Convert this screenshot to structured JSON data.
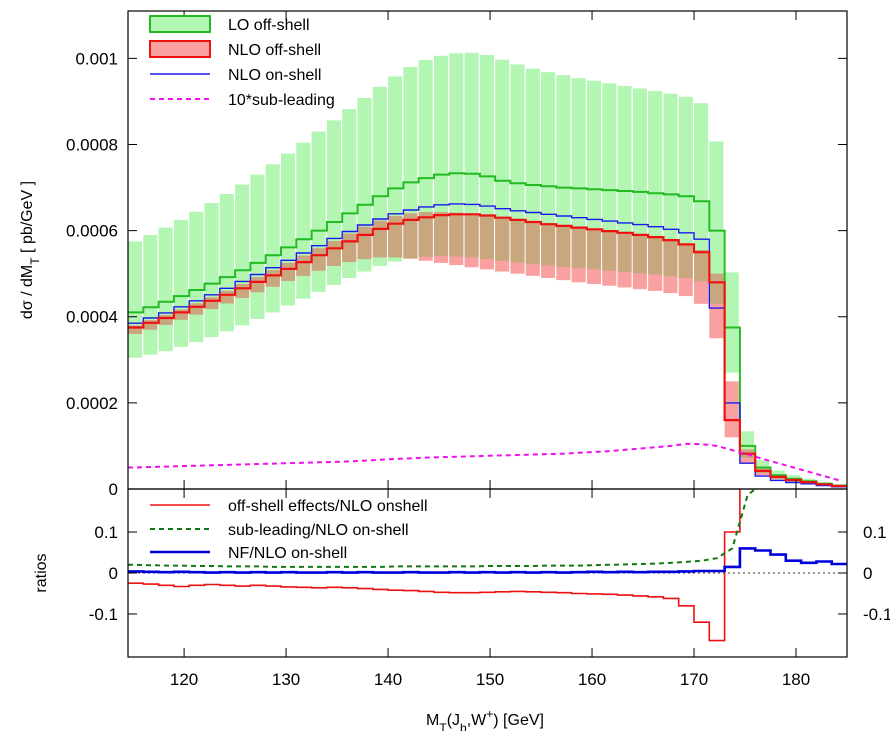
{
  "chart_data": [
    {
      "type": "area",
      "ylabel": "dσ / dM",
      "ylabel_sub": "T",
      "ylabel_units": " [ pb/GeV ]",
      "xlim": [
        114.5,
        185
      ],
      "ylim": [
        0,
        0.00111
      ],
      "yticks": [
        0,
        0.0002,
        0.0004,
        0.0006,
        0.0008,
        0.001
      ],
      "ytick_labels": [
        "0",
        "0.0002",
        "0.0004",
        "0.0006",
        "0.0008",
        "0.001"
      ],
      "legend_position": "top-left",
      "bin_edges": [
        114.5,
        116,
        117.5,
        119,
        120.5,
        122,
        123.5,
        125,
        126.5,
        128,
        129.5,
        131,
        132.5,
        134,
        135.5,
        137,
        138.5,
        140,
        141.5,
        143,
        144.5,
        146,
        147.5,
        149,
        150.5,
        152,
        153.5,
        155,
        156.5,
        158,
        159.5,
        161,
        162.5,
        164,
        165.5,
        167,
        168.5,
        170,
        171.5,
        173,
        174.5,
        176,
        177.5,
        179,
        180.5,
        182,
        183.5,
        185
      ],
      "series": [
        {
          "name": "LO off-shell",
          "style": "band",
          "color": "#22bb22",
          "fill": "#b3f5b3",
          "central": [
            0.00041,
            0.000422,
            0.000435,
            0.000448,
            0.000462,
            0.000477,
            0.000492,
            0.000508,
            0.000525,
            0.000543,
            0.000561,
            0.00058,
            0.0006,
            0.00062,
            0.00064,
            0.00066,
            0.00068,
            0.000698,
            0.000712,
            0.000722,
            0.00073,
            0.000733,
            0.000732,
            0.000726,
            0.000716,
            0.00071,
            0.000706,
            0.000703,
            0.0007,
            0.000698,
            0.000696,
            0.000694,
            0.000692,
            0.00069,
            0.000687,
            0.000684,
            0.00068,
            0.000668,
            0.0006,
            0.000375,
            0.0001,
            5e-05,
            3.2e-05,
            2.4e-05,
            1.8e-05,
            1.2e-05,
            8e-06
          ],
          "low": [
            0.000305,
            0.000312,
            0.00032,
            0.00033,
            0.000341,
            0.000353,
            0.000366,
            0.00038,
            0.000395,
            0.00041,
            0.000426,
            0.000442,
            0.000458,
            0.000474,
            0.00049,
            0.000505,
            0.000518,
            0.000528,
            0.000535,
            0.000539,
            0.000541,
            0.00054,
            0.000538,
            0.000534,
            0.00053,
            0.000526,
            0.000522,
            0.000519,
            0.000516,
            0.000513,
            0.00051,
            0.000507,
            0.000504,
            0.000501,
            0.000498,
            0.000494,
            0.00049,
            0.000482,
            0.00043,
            0.00027,
            7.2e-05,
            3.6e-05,
            2.3e-05,
            1.7e-05,
            1.3e-05,
            9e-06,
            6e-06
          ],
          "high": [
            0.000575,
            0.00059,
            0.000607,
            0.000625,
            0.000644,
            0.000664,
            0.000685,
            0.000707,
            0.00073,
            0.000754,
            0.000779,
            0.000804,
            0.00083,
            0.000856,
            0.000882,
            0.000908,
            0.000934,
            0.000958,
            0.00098,
            0.000996,
            0.001006,
            0.001012,
            0.001013,
            0.001008,
            0.000997,
            0.000986,
            0.000976,
            0.000968,
            0.000961,
            0.000954,
            0.000948,
            0.000942,
            0.000936,
            0.00093,
            0.000924,
            0.000918,
            0.000911,
            0.000896,
            0.000807,
            0.000503,
            0.000134,
            6.7e-05,
            4.3e-05,
            3.2e-05,
            2.4e-05,
            1.6e-05,
            1.1e-05
          ]
        },
        {
          "name": "NLO off-shell",
          "style": "band",
          "color": "#ee1111",
          "fill": "#f9a0a0",
          "central": [
            0.000375,
            0.000386,
            0.000397,
            0.00041,
            0.000423,
            0.000437,
            0.000451,
            0.000466,
            0.000481,
            0.000496,
            0.000511,
            0.000527,
            0.000543,
            0.000559,
            0.000575,
            0.00059,
            0.000604,
            0.000616,
            0.000625,
            0.000631,
            0.000636,
            0.000638,
            0.000638,
            0.000635,
            0.00063,
            0.000625,
            0.00062,
            0.000615,
            0.000611,
            0.000607,
            0.000603,
            0.000599,
            0.000595,
            0.00059,
            0.000585,
            0.000578,
            0.000568,
            0.00055,
            0.00048,
            0.00016,
            8.2e-05,
            4.2e-05,
            2.8e-05,
            2.1e-05,
            1.6e-05,
            1.1e-05,
            7e-06
          ],
          "low": [
            0.00036,
            0.00037,
            0.000381,
            0.000393,
            0.000405,
            0.000418,
            0.000431,
            0.000444,
            0.000457,
            0.00047,
            0.000483,
            0.000495,
            0.000507,
            0.000518,
            0.000527,
            0.000534,
            0.000538,
            0.000538,
            0.000535,
            0.00053,
            0.000525,
            0.00052,
            0.000515,
            0.00051,
            0.000505,
            0.0005,
            0.000495,
            0.00049,
            0.000485,
            0.00048,
            0.000476,
            0.000472,
            0.000468,
            0.000464,
            0.00046,
            0.000455,
            0.000448,
            0.00043,
            0.00035,
            0.00012,
            6e-05,
            3.2e-05,
            2.2e-05,
            1.7e-05,
            1.3e-05,
            9e-06,
            6e-06
          ],
          "high": [
            0.00038,
            0.000392,
            0.000404,
            0.000417,
            0.000431,
            0.000445,
            0.00046,
            0.000476,
            0.000492,
            0.000508,
            0.000525,
            0.000542,
            0.000559,
            0.000576,
            0.000593,
            0.000609,
            0.000623,
            0.000634,
            0.00064,
            0.000643,
            0.000643,
            0.000642,
            0.00064,
            0.000636,
            0.000631,
            0.000626,
            0.000621,
            0.000616,
            0.000612,
            0.000608,
            0.000604,
            0.0006,
            0.000596,
            0.000591,
            0.000586,
            0.000579,
            0.000569,
            0.000555,
            0.0005,
            0.00025,
            9.2e-05,
            4.7e-05,
            3e-05,
            2.3e-05,
            1.7e-05,
            1.2e-05,
            8e-06
          ]
        },
        {
          "name": "NLO on-shell",
          "style": "step",
          "color": "#1a1aee",
          "values": [
            0.000385,
            0.000397,
            0.000409,
            0.000423,
            0.000437,
            0.000451,
            0.000466,
            0.000482,
            0.000498,
            0.000514,
            0.000531,
            0.000548,
            0.000565,
            0.000582,
            0.000598,
            0.000613,
            0.000627,
            0.000639,
            0.000648,
            0.000655,
            0.00066,
            0.000662,
            0.000661,
            0.000657,
            0.000651,
            0.000646,
            0.000642,
            0.000638,
            0.000634,
            0.00063,
            0.000626,
            0.000622,
            0.000618,
            0.000614,
            0.000609,
            0.000603,
            0.000595,
            0.00058,
            0.00042,
            0.0002,
            6e-05,
            3e-05,
            2e-05,
            1.5e-05,
            1.2e-05,
            8e-06,
            5e-06
          ]
        },
        {
          "name": "10*sub-leading",
          "style": "dashed",
          "color": "#ee11ee",
          "values": [
            5e-05,
            5.1e-05,
            5.2e-05,
            5.3e-05,
            5.4e-05,
            5.5e-05,
            5.6e-05,
            5.7e-05,
            5.8e-05,
            5.9e-05,
            6e-05,
            6.1e-05,
            6.2e-05,
            6.3e-05,
            6.4e-05,
            6.6e-05,
            6.8e-05,
            7e-05,
            7.1e-05,
            7.3e-05,
            7.4e-05,
            7.5e-05,
            7.6e-05,
            7.7e-05,
            7.8e-05,
            7.9e-05,
            8e-05,
            8.1e-05,
            8.2e-05,
            8.4e-05,
            8.6e-05,
            8.8e-05,
            9.1e-05,
            9.4e-05,
            9.7e-05,
            0.0001,
            0.000105,
            0.000104,
            0.0001,
            9e-05,
            8e-05,
            7e-05,
            6e-05,
            5e-05,
            4e-05,
            3e-05,
            2e-05
          ]
        }
      ]
    },
    {
      "type": "line",
      "xlabel_parts": [
        "M",
        "T",
        "(J",
        "b",
        ",W",
        "+",
        ") [GeV]"
      ],
      "ylabel": "ratios",
      "xlim": [
        114.5,
        185
      ],
      "ylim": [
        -0.205,
        0.205
      ],
      "xticks": [
        120,
        130,
        140,
        150,
        160,
        170,
        180
      ],
      "xtick_labels": [
        "120",
        "130",
        "140",
        "150",
        "160",
        "170",
        "180"
      ],
      "yticks": [
        -0.1,
        0,
        0.1
      ],
      "ytick_labels": [
        "-0.1",
        "0",
        "0.1"
      ],
      "legend_position": "top-left",
      "reference_line_y": 0,
      "bin_edges": [
        114.5,
        116,
        117.5,
        119,
        120.5,
        122,
        123.5,
        125,
        126.5,
        128,
        129.5,
        131,
        132.5,
        134,
        135.5,
        137,
        138.5,
        140,
        141.5,
        143,
        144.5,
        146,
        147.5,
        149,
        150.5,
        152,
        153.5,
        155,
        156.5,
        158,
        159.5,
        161,
        162.5,
        164,
        165.5,
        167,
        168.5,
        170,
        171.5,
        173,
        174.5,
        176,
        177.5,
        179,
        180.5,
        182,
        183.5,
        185
      ],
      "series": [
        {
          "name": "off-shell effects/NLO onshell",
          "style": "step",
          "color": "#ee1111",
          "values": [
            -0.025,
            -0.027,
            -0.03,
            -0.033,
            -0.03,
            -0.028,
            -0.03,
            -0.032,
            -0.03,
            -0.032,
            -0.034,
            -0.035,
            -0.036,
            -0.035,
            -0.036,
            -0.038,
            -0.04,
            -0.042,
            -0.043,
            -0.045,
            -0.047,
            -0.048,
            -0.048,
            -0.047,
            -0.046,
            -0.045,
            -0.046,
            -0.047,
            -0.048,
            -0.05,
            -0.051,
            -0.052,
            -0.054,
            -0.056,
            -0.058,
            -0.062,
            -0.08,
            -0.12,
            -0.165,
            0.1,
            0.21,
            0.22,
            0.22,
            0.22,
            0.22,
            0.22,
            0.22
          ]
        },
        {
          "name": "sub-leading/NLO on-shell",
          "style": "dashed",
          "color": "#117711",
          "values": [
            0.02,
            0.019,
            0.018,
            0.018,
            0.017,
            0.017,
            0.016,
            0.016,
            0.016,
            0.015,
            0.015,
            0.015,
            0.015,
            0.015,
            0.015,
            0.015,
            0.015,
            0.016,
            0.016,
            0.016,
            0.016,
            0.016,
            0.016,
            0.017,
            0.017,
            0.017,
            0.017,
            0.018,
            0.018,
            0.018,
            0.019,
            0.02,
            0.021,
            0.022,
            0.023,
            0.025,
            0.027,
            0.03,
            0.036,
            0.06,
            0.19,
            0.22,
            0.22,
            0.22,
            0.22,
            0.22,
            0.22
          ]
        },
        {
          "name": "NF/NLO on-shell",
          "style": "step",
          "color": "#0000dd",
          "values": [
            0.004,
            0.003,
            0.002,
            0.003,
            0.002,
            0.001,
            0.002,
            0.001,
            0.002,
            0.001,
            0.002,
            0.001,
            0.001,
            0.002,
            0.001,
            0.002,
            0.001,
            0.001,
            0.002,
            0.001,
            0.001,
            0.002,
            0.001,
            0.002,
            0.001,
            0.002,
            0.001,
            0.002,
            0.001,
            0.002,
            0.003,
            0.002,
            0.003,
            0.002,
            0.003,
            0.003,
            0.004,
            0.005,
            0.005,
            0.015,
            0.06,
            0.055,
            0.045,
            0.03,
            0.025,
            0.028,
            0.022
          ]
        }
      ]
    }
  ]
}
